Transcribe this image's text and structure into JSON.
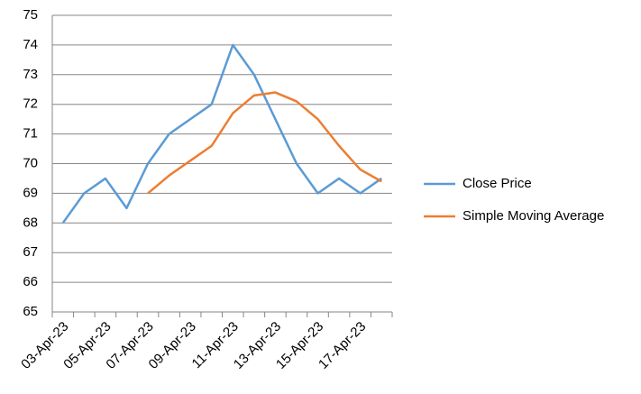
{
  "chart_data": {
    "type": "line",
    "categories": [
      "03-Apr-23",
      null,
      "05-Apr-23",
      null,
      "07-Apr-23",
      null,
      "09-Apr-23",
      null,
      "11-Apr-23",
      null,
      "13-Apr-23",
      null,
      "15-Apr-23",
      null,
      "17-Apr-23",
      null
    ],
    "series": [
      {
        "name": "Close Price",
        "color": "#5b9bd5",
        "values": [
          68,
          69,
          69.5,
          68.5,
          70,
          71,
          71.5,
          72,
          74,
          73,
          71.5,
          70,
          69,
          69.5,
          69,
          69.5
        ]
      },
      {
        "name": "Simple Moving Average",
        "color": "#ed7d31",
        "values": [
          null,
          null,
          null,
          null,
          69,
          69.6,
          70.1,
          70.6,
          71.7,
          72.3,
          72.4,
          72.1,
          71.5,
          70.6,
          69.8,
          69.4
        ]
      }
    ],
    "ylim": [
      65,
      75
    ],
    "yticks": [
      65,
      66,
      67,
      68,
      69,
      70,
      71,
      72,
      73,
      74,
      75
    ],
    "grid": true,
    "legend": "right"
  }
}
